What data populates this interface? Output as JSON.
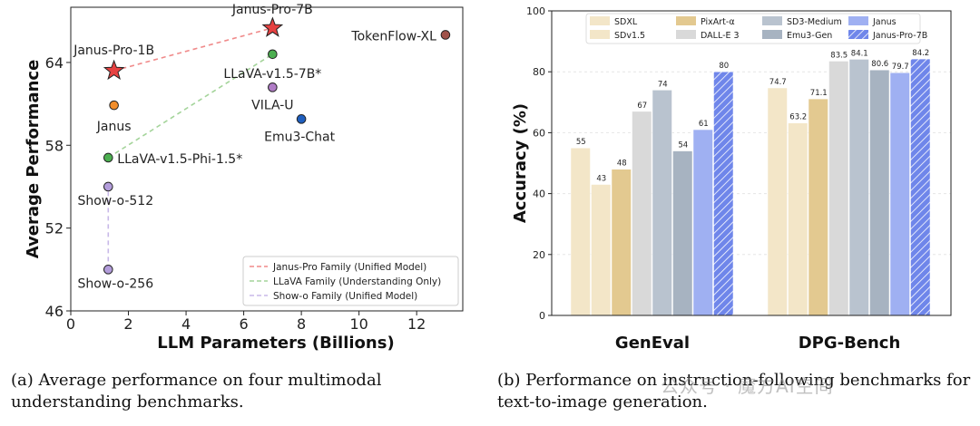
{
  "charts": [
    {
      "type": "scatter",
      "title": "",
      "xlabel": "LLM Parameters (Billions)",
      "ylabel": "Average Performance",
      "xlim": [
        0,
        13.6
      ],
      "ylim": [
        46,
        68
      ],
      "xticks": [
        0,
        2,
        4,
        6,
        8,
        10,
        12
      ],
      "yticks": [
        46,
        52,
        58,
        64
      ],
      "points": [
        {
          "label": "Janus-Pro-7B",
          "x": 7.0,
          "y": 66.5,
          "color": "#e64141",
          "marker": "star"
        },
        {
          "label": "Janus-Pro-1B",
          "x": 1.5,
          "y": 63.4,
          "color": "#e64141",
          "marker": "star"
        },
        {
          "label": "TokenFlow-XL",
          "x": 13.0,
          "y": 66.0,
          "color": "#a0524a",
          "marker": "circle"
        },
        {
          "label": "LLaVA-v1.5-7B*",
          "x": 7.0,
          "y": 64.6,
          "color": "#4caf50",
          "marker": "circle"
        },
        {
          "label": "VILA-U",
          "x": 7.0,
          "y": 62.2,
          "color": "#b07cc6",
          "marker": "circle"
        },
        {
          "label": "Janus",
          "x": 1.5,
          "y": 60.9,
          "color": "#f28e2b",
          "marker": "circle"
        },
        {
          "label": "Emu3-Chat",
          "x": 8.0,
          "y": 59.9,
          "color": "#1f5fbf",
          "marker": "circle"
        },
        {
          "label": "LLaVA-v1.5-Phi-1.5*",
          "x": 1.3,
          "y": 57.1,
          "color": "#4caf50",
          "marker": "circle"
        },
        {
          "label": "Show-o-512",
          "x": 1.3,
          "y": 55.0,
          "color": "#b39ddb",
          "marker": "circle"
        },
        {
          "label": "Show-o-256",
          "x": 1.3,
          "y": 49.0,
          "color": "#b39ddb",
          "marker": "circle"
        }
      ],
      "lines": [
        {
          "name": "Janus-Pro Family (Unified Model)",
          "x": [
            1.5,
            7.0
          ],
          "y": [
            63.4,
            66.5
          ],
          "color": "#f08a8a"
        },
        {
          "name": "LLaVA Family (Understanding Only)",
          "x": [
            1.3,
            7.0
          ],
          "y": [
            57.1,
            64.6
          ],
          "color": "#a4d49a"
        },
        {
          "name": "Show-o Family (Unified Model)",
          "x": [
            1.3,
            1.3
          ],
          "y": [
            49.0,
            55.0
          ],
          "color": "#c8b8e8"
        }
      ],
      "legend_position": "bottom-right"
    },
    {
      "type": "bar",
      "title": "",
      "xlabel": "",
      "ylabel": "Accuracy (%)",
      "ylim": [
        0,
        100
      ],
      "yticks": [
        0,
        20,
        40,
        60,
        80,
        100
      ],
      "categories": [
        "GenEval",
        "DPG-Bench"
      ],
      "series": [
        {
          "name": "SDXL",
          "values": [
            55.0,
            74.7
          ],
          "color": "#f3e6c8"
        },
        {
          "name": "SDv1.5",
          "values": [
            43.0,
            63.2
          ],
          "color": "#f3e6c8"
        },
        {
          "name": "PixArt-α",
          "values": [
            48.0,
            71.1
          ],
          "color": "#e3c990"
        },
        {
          "name": "DALL-E 3",
          "values": [
            67.0,
            83.5
          ],
          "color": "#d9d9d9"
        },
        {
          "name": "SD3-Medium",
          "values": [
            74.0,
            84.1
          ],
          "color": "#b9c3cf"
        },
        {
          "name": "Emu3-Gen",
          "values": [
            54.0,
            80.6
          ],
          "color": "#a7b3c1"
        },
        {
          "name": "Janus",
          "values": [
            61.0,
            79.7
          ],
          "color": "#9fb0f2"
        },
        {
          "name": "Janus-Pro-7B",
          "values": [
            80.0,
            84.2
          ],
          "color": "#6f86ea",
          "hatched": true
        }
      ],
      "legend_position": "top"
    }
  ],
  "captions": {
    "a": "(a) Average performance on four multimodal understanding benchmarks.",
    "b": "(b) Performance on instruction-following benchmarks for text-to-image generation."
  },
  "watermark": "公众号 · 魔方AI空间"
}
